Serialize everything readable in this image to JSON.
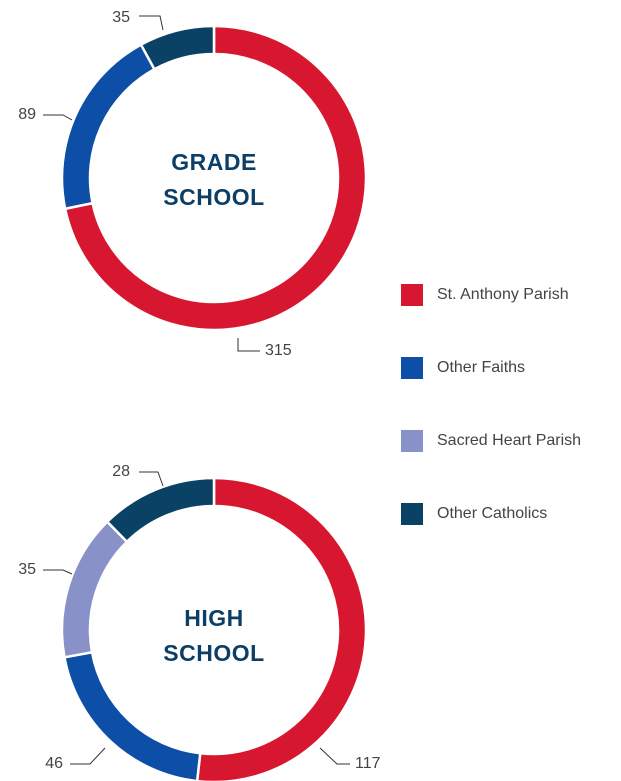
{
  "chart_data": [
    {
      "type": "donut",
      "title": "GRADE SCHOOL",
      "categories": [
        "St. Anthony Parish",
        "Other Faiths",
        "Other Catholics"
      ],
      "values": [
        315,
        89,
        35
      ],
      "colors": [
        "#d7172f",
        "#0d4ea6",
        "#0a4265"
      ]
    },
    {
      "type": "donut",
      "title": "HIGH SCHOOL",
      "categories": [
        "St. Anthony Parish",
        "Other Faiths",
        "Sacred Heart Parish",
        "Other Catholics"
      ],
      "values": [
        117,
        46,
        35,
        28
      ],
      "colors": [
        "#d7172f",
        "#0d4ea6",
        "#8891c8",
        "#0a4265"
      ]
    }
  ],
  "legend": [
    {
      "name": "St. Anthony Parish",
      "color": "#d7172f"
    },
    {
      "name": "Other Faiths",
      "color": "#0d4ea6"
    },
    {
      "name": "Sacred Heart Parish",
      "color": "#8891c8"
    },
    {
      "name": "Other Catholics",
      "color": "#0a4265"
    }
  ]
}
